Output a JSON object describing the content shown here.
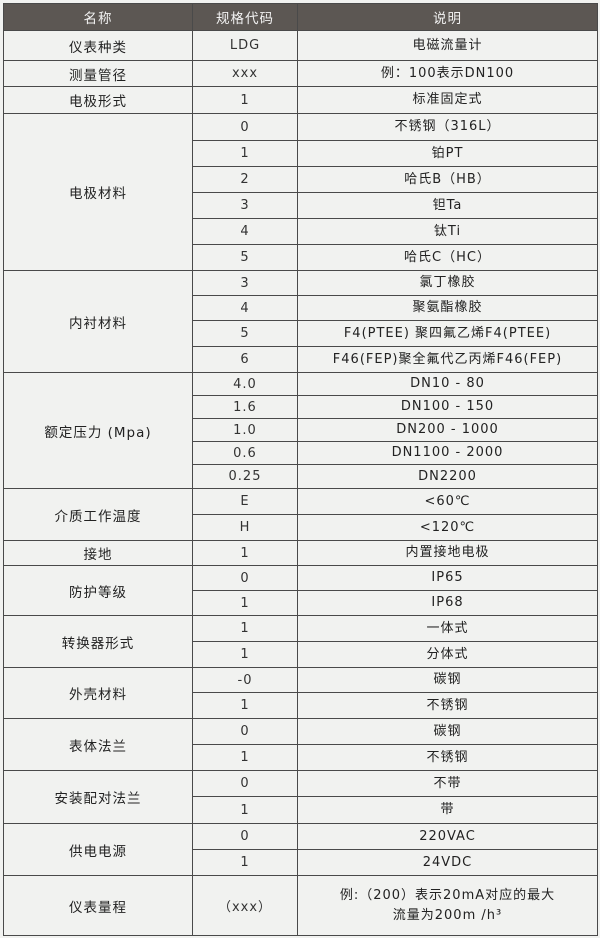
{
  "header": {
    "name": "名称",
    "code": "规格代码",
    "desc": "说明"
  },
  "groups": [
    {
      "name": "仪表种类",
      "rows": [
        {
          "code": "LDG",
          "desc": "电磁流量计"
        }
      ]
    },
    {
      "name": "测量管径",
      "rows": [
        {
          "code": "xxx",
          "desc": "例：100表示DN100"
        }
      ]
    },
    {
      "name": "电极形式",
      "rows": [
        {
          "code": "1",
          "desc": "标准固定式"
        }
      ]
    },
    {
      "name": "电极材料",
      "rows": [
        {
          "code": "0",
          "desc": "不锈钢（316L）"
        },
        {
          "code": "1",
          "desc": "铂PT"
        },
        {
          "code": "2",
          "desc": "哈氏B（HB）"
        },
        {
          "code": "3",
          "desc": "钽Ta"
        },
        {
          "code": "4",
          "desc": "钛Ti"
        },
        {
          "code": "5",
          "desc": "哈氏C（HC）"
        }
      ]
    },
    {
      "name": "内衬材料",
      "rows": [
        {
          "code": "3",
          "desc": "氯丁橡胶"
        },
        {
          "code": "4",
          "desc": "聚氨酯橡胶"
        },
        {
          "code": "5",
          "desc": "F4(PTEE) 聚四氟乙烯F4(PTEE)"
        },
        {
          "code": "6",
          "desc": "F46(FEP)聚全氟代乙丙烯F46(FEP)"
        }
      ]
    },
    {
      "name": "额定压力 (Mpa)",
      "rows": [
        {
          "code": "4.0",
          "desc": "DN10 - 80"
        },
        {
          "code": "1.6",
          "desc": "DN100 - 150"
        },
        {
          "code": "1.0",
          "desc": "DN200 - 1000"
        },
        {
          "code": "0.6",
          "desc": "DN1100 - 2000"
        },
        {
          "code": "0.25",
          "desc": "DN2200"
        }
      ]
    },
    {
      "name": "介质工作温度",
      "rows": [
        {
          "code": "E",
          "desc": "<60℃"
        },
        {
          "code": "H",
          "desc": "<120℃"
        }
      ]
    },
    {
      "name": "接地",
      "rows": [
        {
          "code": "1",
          "desc": "内置接地电极"
        }
      ]
    },
    {
      "name": "防护等级",
      "rows": [
        {
          "code": "0",
          "desc": "IP65"
        },
        {
          "code": "1",
          "desc": "IP68"
        }
      ]
    },
    {
      "name": "转换器形式",
      "rows": [
        {
          "code": "1",
          "desc": "一体式"
        },
        {
          "code": "1",
          "desc": "分体式"
        }
      ]
    },
    {
      "name": "外壳材料",
      "rows": [
        {
          "code": "-0",
          "desc": "碳钢"
        },
        {
          "code": "1",
          "desc": "不锈钢"
        }
      ]
    },
    {
      "name": "表体法兰",
      "rows": [
        {
          "code": "0",
          "desc": "碳钢"
        },
        {
          "code": "1",
          "desc": "不锈钢"
        }
      ]
    },
    {
      "name": "安装配对法兰",
      "rows": [
        {
          "code": "0",
          "desc": "不带"
        },
        {
          "code": "1",
          "desc": "带"
        }
      ]
    },
    {
      "name": "供电电源",
      "rows": [
        {
          "code": "0",
          "desc": "220VAC"
        },
        {
          "code": "1",
          "desc": "24VDC"
        }
      ]
    },
    {
      "name": "仪表量程",
      "rows": [
        {
          "code": "（xxx）",
          "desc": "例:（200）表示20mA对应的最大",
          "desc2": "流量为200m /h³"
        }
      ]
    }
  ]
}
